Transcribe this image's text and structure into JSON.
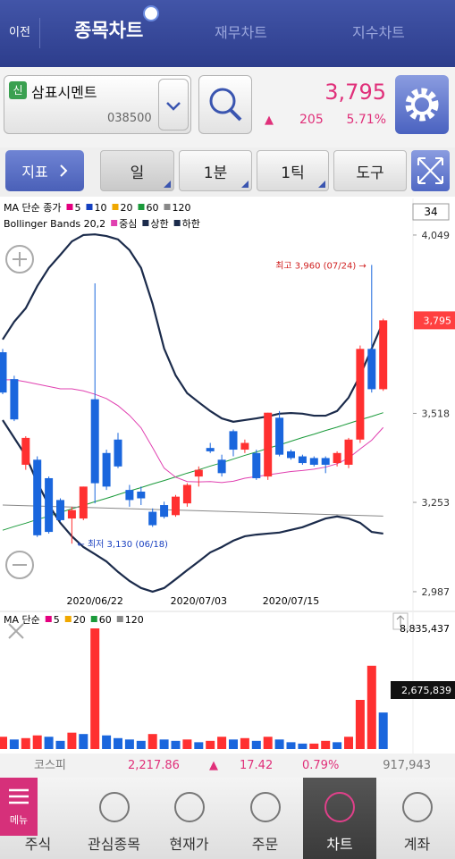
{
  "header": {
    "back": "이전",
    "tabs": [
      "종목차트",
      "재무차트",
      "지수차트"
    ]
  },
  "stock": {
    "badge": "신",
    "name": "삼표시멘트",
    "code": "038500",
    "price": "3,795",
    "change_arrow": "▲",
    "change": "205",
    "change_pct": "5.71%"
  },
  "toolbar": [
    "지표",
    "일",
    "1분",
    "1틱",
    "도구"
  ],
  "chart_data": [
    {
      "type": "candlestick",
      "categories": [
        null,
        null,
        null,
        null,
        null,
        null,
        null,
        null,
        "2020/06/22",
        null,
        null,
        null,
        null,
        null,
        null,
        null,
        null,
        "2020/07/03",
        null,
        null,
        null,
        null,
        null,
        null,
        null,
        "2020/07/15",
        null,
        null,
        null,
        null,
        null,
        null,
        null,
        null
      ],
      "open": [
        3700,
        3620,
        3365,
        3380,
        3325,
        3260,
        3205,
        3205,
        3560,
        3400,
        3440,
        3290,
        3285,
        3225,
        3245,
        3215,
        3250,
        3330,
        3415,
        3380,
        3465,
        3410,
        3400,
        3330,
        3505,
        3405,
        3390,
        3385,
        3385,
        3370,
        3365,
        3440,
        3710,
        3590
      ],
      "high": [
        3710,
        3630,
        3450,
        3390,
        3330,
        3265,
        3240,
        3300,
        3905,
        3410,
        3460,
        3305,
        3300,
        3235,
        3255,
        3275,
        3310,
        3360,
        3430,
        3395,
        3470,
        3440,
        3410,
        3520,
        3525,
        3410,
        3395,
        3390,
        3390,
        3405,
        3445,
        3720,
        3960,
        3800
      ],
      "low": [
        3575,
        3495,
        3350,
        3150,
        3160,
        3195,
        3130,
        3200,
        3250,
        3290,
        3355,
        3240,
        3245,
        3180,
        3205,
        3210,
        3240,
        3300,
        3400,
        3330,
        3390,
        3400,
        3320,
        3320,
        3390,
        3380,
        3365,
        3360,
        3340,
        3360,
        3355,
        3430,
        3580,
        3585
      ],
      "close": [
        3580,
        3500,
        3445,
        3155,
        3165,
        3200,
        3230,
        3300,
        3310,
        3300,
        3360,
        3260,
        3265,
        3185,
        3210,
        3270,
        3305,
        3350,
        3405,
        3340,
        3410,
        3430,
        3325,
        3520,
        3395,
        3385,
        3370,
        3365,
        3365,
        3400,
        3440,
        3710,
        3590,
        3795
      ],
      "up_color": "#ff3030",
      "down_color": "#1a66dd",
      "ylim": [
        2939,
        4150
      ],
      "yticks": [
        {
          "value": 4049,
          "label": "4,049"
        },
        {
          "value": 3518,
          "label": "3,518"
        },
        {
          "value": 3253,
          "label": "3,253"
        },
        {
          "value": 2987,
          "label": "2,987"
        }
      ],
      "last_price": {
        "value": 3795,
        "label": "3,795"
      },
      "count_label": "34",
      "ma_title": "MA 단순 종가",
      "ma_lines": [
        {
          "name": "5",
          "color": "#e4007f"
        },
        {
          "name": "10",
          "color": "#1540c0"
        },
        {
          "name": "20",
          "color": "#f0a800"
        },
        {
          "name": "60",
          "color": "#1a9a3a",
          "values": [
            3170,
            3181,
            3191,
            3202,
            3212,
            3223,
            3234,
            3244,
            3255,
            3265,
            3276,
            3287,
            3297,
            3308,
            3318,
            3329,
            3340,
            3350,
            3361,
            3371,
            3382,
            3393,
            3403,
            3414,
            3424,
            3435,
            3446,
            3456,
            3467,
            3477,
            3488,
            3499,
            3509,
            3520
          ]
        },
        {
          "name": "120",
          "color": "#888888",
          "values": [
            3245,
            3244,
            3243,
            3242,
            3241,
            3240,
            3239,
            3238,
            3237,
            3236,
            3235,
            3234,
            3233,
            3232,
            3231,
            3230,
            3229,
            3228,
            3227,
            3226,
            3225,
            3224,
            3223,
            3222,
            3221,
            3220,
            3219,
            3218,
            3217,
            3216,
            3215,
            3214,
            3213,
            3212
          ]
        }
      ],
      "bb_title": "Bollinger Bands 20,2",
      "bb_lines": [
        {
          "name": "중심",
          "color": "#e040b0",
          "values": [
            3618,
            3618,
            3612,
            3605,
            3598,
            3591,
            3591,
            3585,
            3575,
            3562,
            3541,
            3512,
            3475,
            3416,
            3355,
            3328,
            3315,
            3314,
            3315,
            3312,
            3316,
            3325,
            3330,
            3335,
            3340,
            3345,
            3348,
            3352,
            3358,
            3368,
            3385,
            3412,
            3438,
            3476
          ]
        },
        {
          "name": "상한",
          "color": "#1b2b4b",
          "values": [
            3738,
            3791,
            3831,
            3897,
            3951,
            3990,
            4030,
            4049,
            4051,
            4046,
            4036,
            4004,
            3951,
            3844,
            3711,
            3631,
            3578,
            3551,
            3525,
            3503,
            3493,
            3498,
            3503,
            3509,
            3517,
            3519,
            3517,
            3511,
            3511,
            3525,
            3565,
            3631,
            3711,
            3791
          ]
        },
        {
          "name": "하한",
          "color": "#1b2b4b",
          "values": [
            3498,
            3445,
            3392,
            3312,
            3245,
            3192,
            3152,
            3120,
            3099,
            3077,
            3046,
            3019,
            2998,
            2987,
            2998,
            3024,
            3051,
            3077,
            3104,
            3120,
            3139,
            3152,
            3157,
            3160,
            3163,
            3171,
            3179,
            3192,
            3205,
            3211,
            3205,
            3192,
            3165,
            3160
          ]
        }
      ],
      "annotations": [
        "최고 3,960 (07/24) →",
        "← 최저 3,130 (06/18)"
      ]
    },
    {
      "type": "bar",
      "values": [
        900000,
        700000,
        800000,
        1000000,
        900000,
        600000,
        1200000,
        1100000,
        8835437,
        1000000,
        800000,
        700000,
        600000,
        1100000,
        700000,
        600000,
        700000,
        500000,
        600000,
        900000,
        700000,
        800000,
        600000,
        900000,
        700000,
        500000,
        400000,
        400000,
        600000,
        500000,
        900000,
        3600000,
        6100000,
        2675839
      ],
      "up_color": "#ff3030",
      "down_color": "#1a66dd",
      "ylim": [
        0,
        8835437
      ],
      "yticks": [
        {
          "value": 8835437,
          "label": "8,835,437"
        }
      ],
      "last_value": {
        "value": 2675839,
        "label": "2,675,839"
      },
      "ma_title": "MA 단순",
      "ma_lines": [
        {
          "name": "5",
          "color": "#e4007f"
        },
        {
          "name": "20",
          "color": "#f0a800"
        },
        {
          "name": "60",
          "color": "#1a9a3a"
        },
        {
          "name": "120",
          "color": "#888888"
        }
      ]
    }
  ],
  "index_bar": {
    "name": "코스피",
    "value": "2,217.86",
    "arrow": "▲",
    "change": "17.42",
    "change_pct": "0.79%",
    "volume": "917,943"
  },
  "nav": {
    "menu": "메뉴",
    "items": [
      "주식",
      "관심종목",
      "현재가",
      "주문",
      "차트",
      "계좌"
    ]
  }
}
